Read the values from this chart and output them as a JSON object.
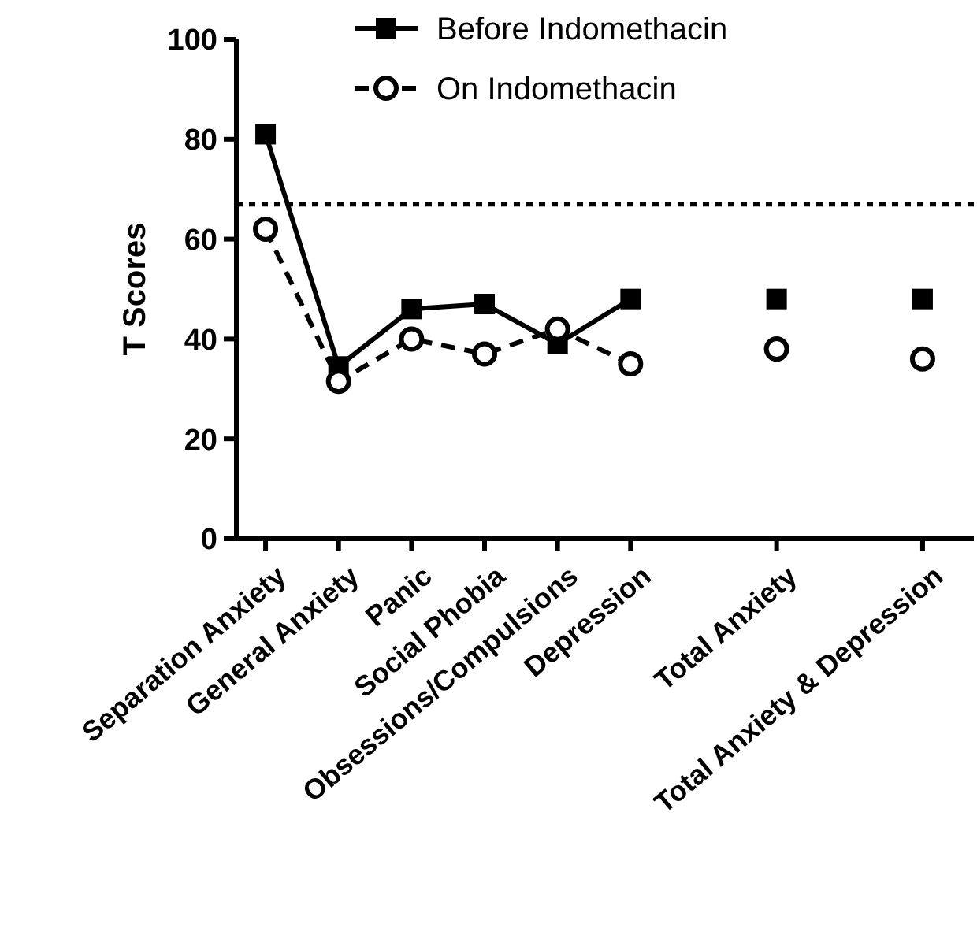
{
  "chart_data": {
    "type": "line",
    "ylabel": "T Scores",
    "categories": [
      "Separation Anxiety",
      "General Anxiety",
      "Panic",
      "Social Phobia",
      "Obsessions/Compulsions",
      "Depression",
      null,
      "Total Anxiety",
      null,
      "Total Anxiety & Depression"
    ],
    "series": [
      {
        "name": "Before Indomethacin",
        "color": "#000000",
        "marker": "square",
        "line_style": "solid",
        "values": [
          81,
          34.5,
          46,
          47,
          39,
          48,
          null,
          48,
          null,
          48
        ]
      },
      {
        "name": "On Indomethacin",
        "color": "#000000",
        "marker": "circle",
        "line_style": "dashed",
        "values": [
          62,
          31.5,
          40,
          37,
          42,
          35,
          null,
          38,
          null,
          36
        ]
      }
    ],
    "ylim": [
      0,
      100
    ],
    "yticks": [
      0,
      20,
      40,
      60,
      80,
      100
    ],
    "ref_lines": [
      {
        "axis": "y",
        "value": 67,
        "line_style": "dotted",
        "color": "#000000"
      }
    ],
    "legend": "top",
    "grid": false
  }
}
